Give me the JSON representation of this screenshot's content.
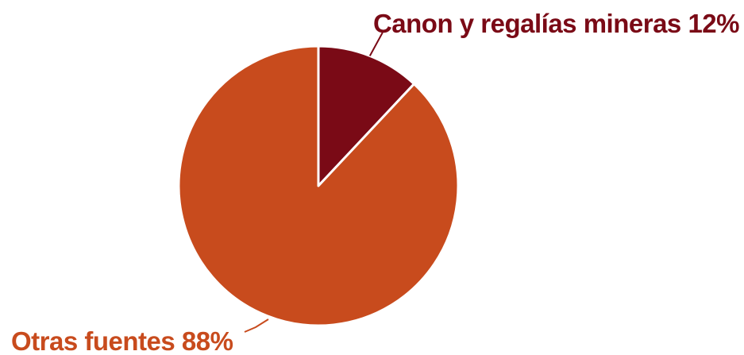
{
  "chart_data": {
    "type": "pie",
    "slices": [
      {
        "label": "Canon y regalías mineras",
        "value": 12,
        "display": "Canon y regalías mineras 12%",
        "color": "#7a0a16"
      },
      {
        "label": "Otras fuentes",
        "value": 88,
        "display": "Otras fuentes 88%",
        "color": "#c84b1d"
      }
    ],
    "unit": "%",
    "start_angle": "top (12 o'clock)",
    "direction": "clockwise",
    "legend": "none",
    "labels": "outside with leader lines"
  }
}
